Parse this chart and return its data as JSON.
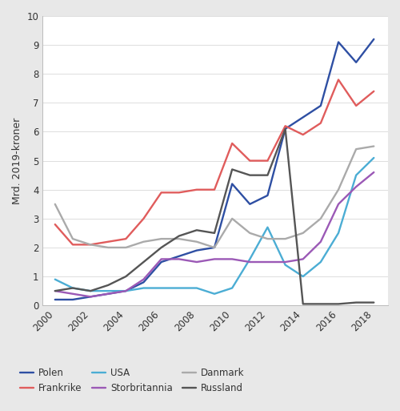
{
  "years": [
    2000,
    2001,
    2002,
    2003,
    2004,
    2005,
    2006,
    2007,
    2008,
    2009,
    2010,
    2011,
    2012,
    2013,
    2014,
    2015,
    2016,
    2017,
    2018
  ],
  "Polen": [
    0.2,
    0.2,
    0.3,
    0.4,
    0.5,
    0.8,
    1.5,
    1.7,
    1.9,
    2.0,
    4.2,
    3.5,
    3.8,
    6.1,
    6.5,
    6.9,
    9.1,
    8.4,
    9.2
  ],
  "Frankrike": [
    2.8,
    2.1,
    2.1,
    2.2,
    2.3,
    3.0,
    3.9,
    3.9,
    4.0,
    4.0,
    5.6,
    5.0,
    5.0,
    6.2,
    5.9,
    6.3,
    7.8,
    6.9,
    7.4
  ],
  "USA": [
    0.9,
    0.6,
    0.5,
    0.5,
    0.5,
    0.6,
    0.6,
    0.6,
    0.6,
    0.4,
    0.6,
    1.6,
    2.7,
    1.4,
    1.0,
    1.5,
    2.5,
    4.5,
    5.1
  ],
  "Storbritannia": [
    0.5,
    0.4,
    0.3,
    0.4,
    0.5,
    0.9,
    1.6,
    1.6,
    1.5,
    1.6,
    1.6,
    1.5,
    1.5,
    1.5,
    1.6,
    2.2,
    3.5,
    4.1,
    4.6
  ],
  "Danmark": [
    3.5,
    2.3,
    2.1,
    2.0,
    2.0,
    2.2,
    2.3,
    2.3,
    2.2,
    2.0,
    3.0,
    2.5,
    2.3,
    2.3,
    2.5,
    3.0,
    4.0,
    5.4,
    5.5
  ],
  "Russland": [
    0.5,
    0.6,
    0.5,
    0.7,
    1.0,
    1.5,
    2.0,
    2.4,
    2.6,
    2.5,
    4.7,
    4.5,
    4.5,
    6.1,
    0.05,
    0.05,
    0.05,
    0.1,
    0.1
  ],
  "colors": {
    "Polen": "#2e4fa3",
    "Frankrike": "#e05c5c",
    "USA": "#4badd4",
    "Storbritannia": "#9b59b6",
    "Danmark": "#aaaaaa",
    "Russland": "#555555"
  },
  "ylabel": "Mrd. 2019-kroner",
  "ylim": [
    0,
    10
  ],
  "yticks": [
    0,
    1,
    2,
    3,
    4,
    5,
    6,
    7,
    8,
    9,
    10
  ],
  "background_color": "#e8e8e8",
  "plot_bg": "#ffffff",
  "legend_order": [
    "Polen",
    "Frankrike",
    "USA",
    "Storbritannia",
    "Danmark",
    "Russland"
  ]
}
